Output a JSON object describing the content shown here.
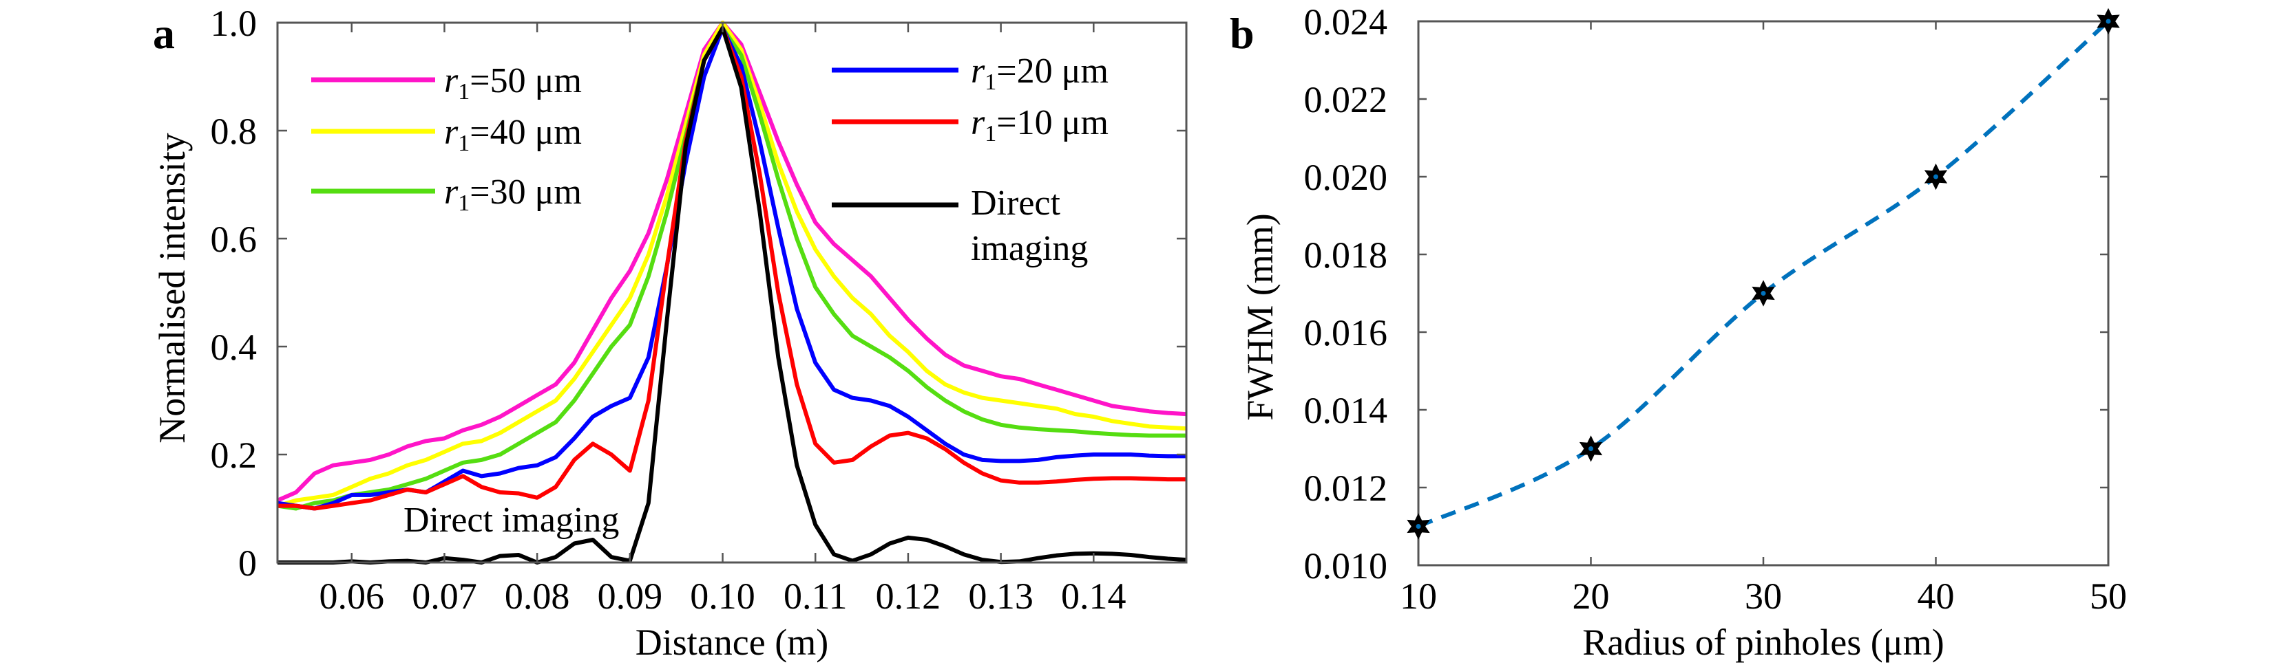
{
  "figure": {
    "panels": [
      "a",
      "b"
    ]
  },
  "chart_data": [
    {
      "id": "a",
      "type": "line",
      "panel_label": "a",
      "title": "",
      "xlabel": "Distance (m)",
      "ylabel": "Normalised intensity",
      "xlim": [
        0.052,
        0.15
      ],
      "ylim": [
        0,
        1.0
      ],
      "xticks": [
        0.06,
        0.07,
        0.08,
        0.09,
        0.1,
        0.11,
        0.12,
        0.13,
        0.14
      ],
      "xtick_labels": [
        "0.06",
        "0.07",
        "0.08",
        "0.09",
        "0.10",
        "0.11",
        "0.12",
        "0.13",
        "0.14"
      ],
      "yticks": [
        0,
        0.2,
        0.4,
        0.6,
        0.8,
        1.0
      ],
      "ytick_labels": [
        "0",
        "0.2",
        "0.4",
        "0.6",
        "0.8",
        "1.0"
      ],
      "grid": false,
      "legend_placement": "inside, two columns (top-left and top-right)",
      "annotations": [
        {
          "text": "Direct imaging",
          "x": 0.078,
          "y": 0.06
        }
      ],
      "x": [
        0.052,
        0.054,
        0.056,
        0.058,
        0.06,
        0.062,
        0.064,
        0.066,
        0.068,
        0.07,
        0.072,
        0.074,
        0.076,
        0.078,
        0.08,
        0.082,
        0.084,
        0.086,
        0.088,
        0.09,
        0.092,
        0.094,
        0.096,
        0.098,
        0.1,
        0.102,
        0.104,
        0.106,
        0.108,
        0.11,
        0.112,
        0.114,
        0.116,
        0.118,
        0.12,
        0.122,
        0.124,
        0.126,
        0.128,
        0.13,
        0.132,
        0.134,
        0.136,
        0.138,
        0.14,
        0.142,
        0.144,
        0.146,
        0.148,
        0.15
      ],
      "series": [
        {
          "name": "r1=50 μm",
          "label_var": "r",
          "label_sub": "1",
          "label_rest": "=50 μm",
          "color": "#FF14C8",
          "legend_col": 0,
          "values": [
            0.115,
            0.13,
            0.165,
            0.18,
            0.185,
            0.19,
            0.2,
            0.215,
            0.225,
            0.23,
            0.245,
            0.255,
            0.27,
            0.29,
            0.31,
            0.33,
            0.37,
            0.43,
            0.49,
            0.54,
            0.61,
            0.71,
            0.83,
            0.95,
            1.0,
            0.96,
            0.87,
            0.78,
            0.7,
            0.63,
            0.59,
            0.56,
            0.53,
            0.49,
            0.45,
            0.415,
            0.385,
            0.365,
            0.355,
            0.345,
            0.34,
            0.33,
            0.32,
            0.31,
            0.3,
            0.29,
            0.285,
            0.28,
            0.277,
            0.275
          ]
        },
        {
          "name": "r1=40 μm",
          "label_var": "r",
          "label_sub": "1",
          "label_rest": "=40 μm",
          "color": "#FFFF00",
          "legend_col": 0,
          "values": [
            0.105,
            0.115,
            0.12,
            0.125,
            0.14,
            0.155,
            0.165,
            0.18,
            0.19,
            0.205,
            0.22,
            0.225,
            0.24,
            0.26,
            0.28,
            0.3,
            0.34,
            0.39,
            0.44,
            0.49,
            0.57,
            0.68,
            0.81,
            0.94,
            1.0,
            0.95,
            0.85,
            0.74,
            0.65,
            0.58,
            0.53,
            0.49,
            0.46,
            0.42,
            0.39,
            0.355,
            0.33,
            0.315,
            0.305,
            0.3,
            0.295,
            0.29,
            0.285,
            0.275,
            0.27,
            0.262,
            0.257,
            0.252,
            0.25,
            0.248
          ]
        },
        {
          "name": "r1=30 μm",
          "label_var": "r",
          "label_sub": "1",
          "label_rest": "=30 μm",
          "color": "#55DD11",
          "legend_col": 0,
          "values": [
            0.105,
            0.1,
            0.11,
            0.115,
            0.125,
            0.13,
            0.135,
            0.145,
            0.155,
            0.17,
            0.185,
            0.19,
            0.2,
            0.22,
            0.24,
            0.26,
            0.3,
            0.35,
            0.4,
            0.44,
            0.53,
            0.65,
            0.79,
            0.93,
            0.99,
            0.94,
            0.83,
            0.71,
            0.6,
            0.51,
            0.46,
            0.42,
            0.4,
            0.38,
            0.355,
            0.325,
            0.3,
            0.28,
            0.265,
            0.255,
            0.25,
            0.247,
            0.245,
            0.243,
            0.24,
            0.238,
            0.236,
            0.235,
            0.235,
            0.235
          ]
        },
        {
          "name": "r1=20 μm",
          "label_var": "r",
          "label_sub": "1",
          "label_rest": "=20 μm",
          "color": "#0000FF",
          "legend_col": 1,
          "values": [
            0.11,
            0.105,
            0.1,
            0.11,
            0.125,
            0.125,
            0.13,
            0.135,
            0.13,
            0.15,
            0.17,
            0.16,
            0.165,
            0.175,
            0.18,
            0.195,
            0.23,
            0.27,
            0.29,
            0.305,
            0.38,
            0.55,
            0.74,
            0.9,
            0.99,
            0.92,
            0.78,
            0.62,
            0.47,
            0.37,
            0.32,
            0.305,
            0.3,
            0.29,
            0.27,
            0.245,
            0.22,
            0.2,
            0.19,
            0.188,
            0.188,
            0.19,
            0.195,
            0.198,
            0.2,
            0.2,
            0.2,
            0.198,
            0.197,
            0.197
          ]
        },
        {
          "name": "r1=10 μm",
          "label_var": "r",
          "label_sub": "1",
          "label_rest": "=10 μm",
          "color": "#FF0000",
          "legend_col": 1,
          "values": [
            0.105,
            0.105,
            0.1,
            0.105,
            0.11,
            0.115,
            0.125,
            0.135,
            0.13,
            0.145,
            0.16,
            0.14,
            0.13,
            0.128,
            0.12,
            0.14,
            0.19,
            0.22,
            0.2,
            0.17,
            0.3,
            0.55,
            0.78,
            0.93,
            0.99,
            0.9,
            0.72,
            0.5,
            0.33,
            0.22,
            0.185,
            0.19,
            0.215,
            0.235,
            0.24,
            0.23,
            0.21,
            0.185,
            0.165,
            0.152,
            0.148,
            0.148,
            0.15,
            0.153,
            0.155,
            0.156,
            0.156,
            0.155,
            0.154,
            0.154
          ]
        },
        {
          "name": "Direct imaging",
          "label_var": "",
          "label_sub": "",
          "label_rest": "Direct|imaging",
          "color": "#000000",
          "legend_col": 1,
          "values": [
            0.0,
            0.0,
            0.0,
            0.0,
            0.002,
            0.0,
            0.002,
            0.003,
            0.0,
            0.008,
            0.005,
            0.0,
            0.012,
            0.014,
            0.0,
            0.01,
            0.035,
            0.042,
            0.01,
            0.003,
            0.11,
            0.45,
            0.77,
            0.93,
            0.99,
            0.88,
            0.65,
            0.38,
            0.18,
            0.07,
            0.015,
            0.003,
            0.015,
            0.035,
            0.046,
            0.042,
            0.03,
            0.015,
            0.005,
            0.001,
            0.002,
            0.008,
            0.013,
            0.016,
            0.017,
            0.016,
            0.014,
            0.01,
            0.007,
            0.005
          ]
        }
      ]
    },
    {
      "id": "b",
      "type": "line",
      "panel_label": "b",
      "title": "",
      "xlabel": "Radius of pinholes (μm)",
      "ylabel": "FWHM (mm)",
      "xlim": [
        10,
        50
      ],
      "ylim": [
        0.01,
        0.024
      ],
      "xticks": [
        10,
        20,
        30,
        40,
        50
      ],
      "xtick_labels": [
        "10",
        "20",
        "30",
        "40",
        "50"
      ],
      "yticks": [
        0.01,
        0.012,
        0.014,
        0.016,
        0.018,
        0.02,
        0.022,
        0.024
      ],
      "ytick_labels": [
        "0.010",
        "0.012",
        "0.014",
        "0.016",
        "0.018",
        "0.020",
        "0.022",
        "0.024"
      ],
      "grid": false,
      "line_style": "dashed",
      "marker": "hexagram",
      "line_color": "#0072BD",
      "marker_color": "#000000",
      "x": [
        10,
        20,
        30,
        40,
        50
      ],
      "series": [
        {
          "name": "FWHM",
          "values": [
            0.011,
            0.013,
            0.017,
            0.02,
            0.024
          ]
        }
      ]
    }
  ]
}
